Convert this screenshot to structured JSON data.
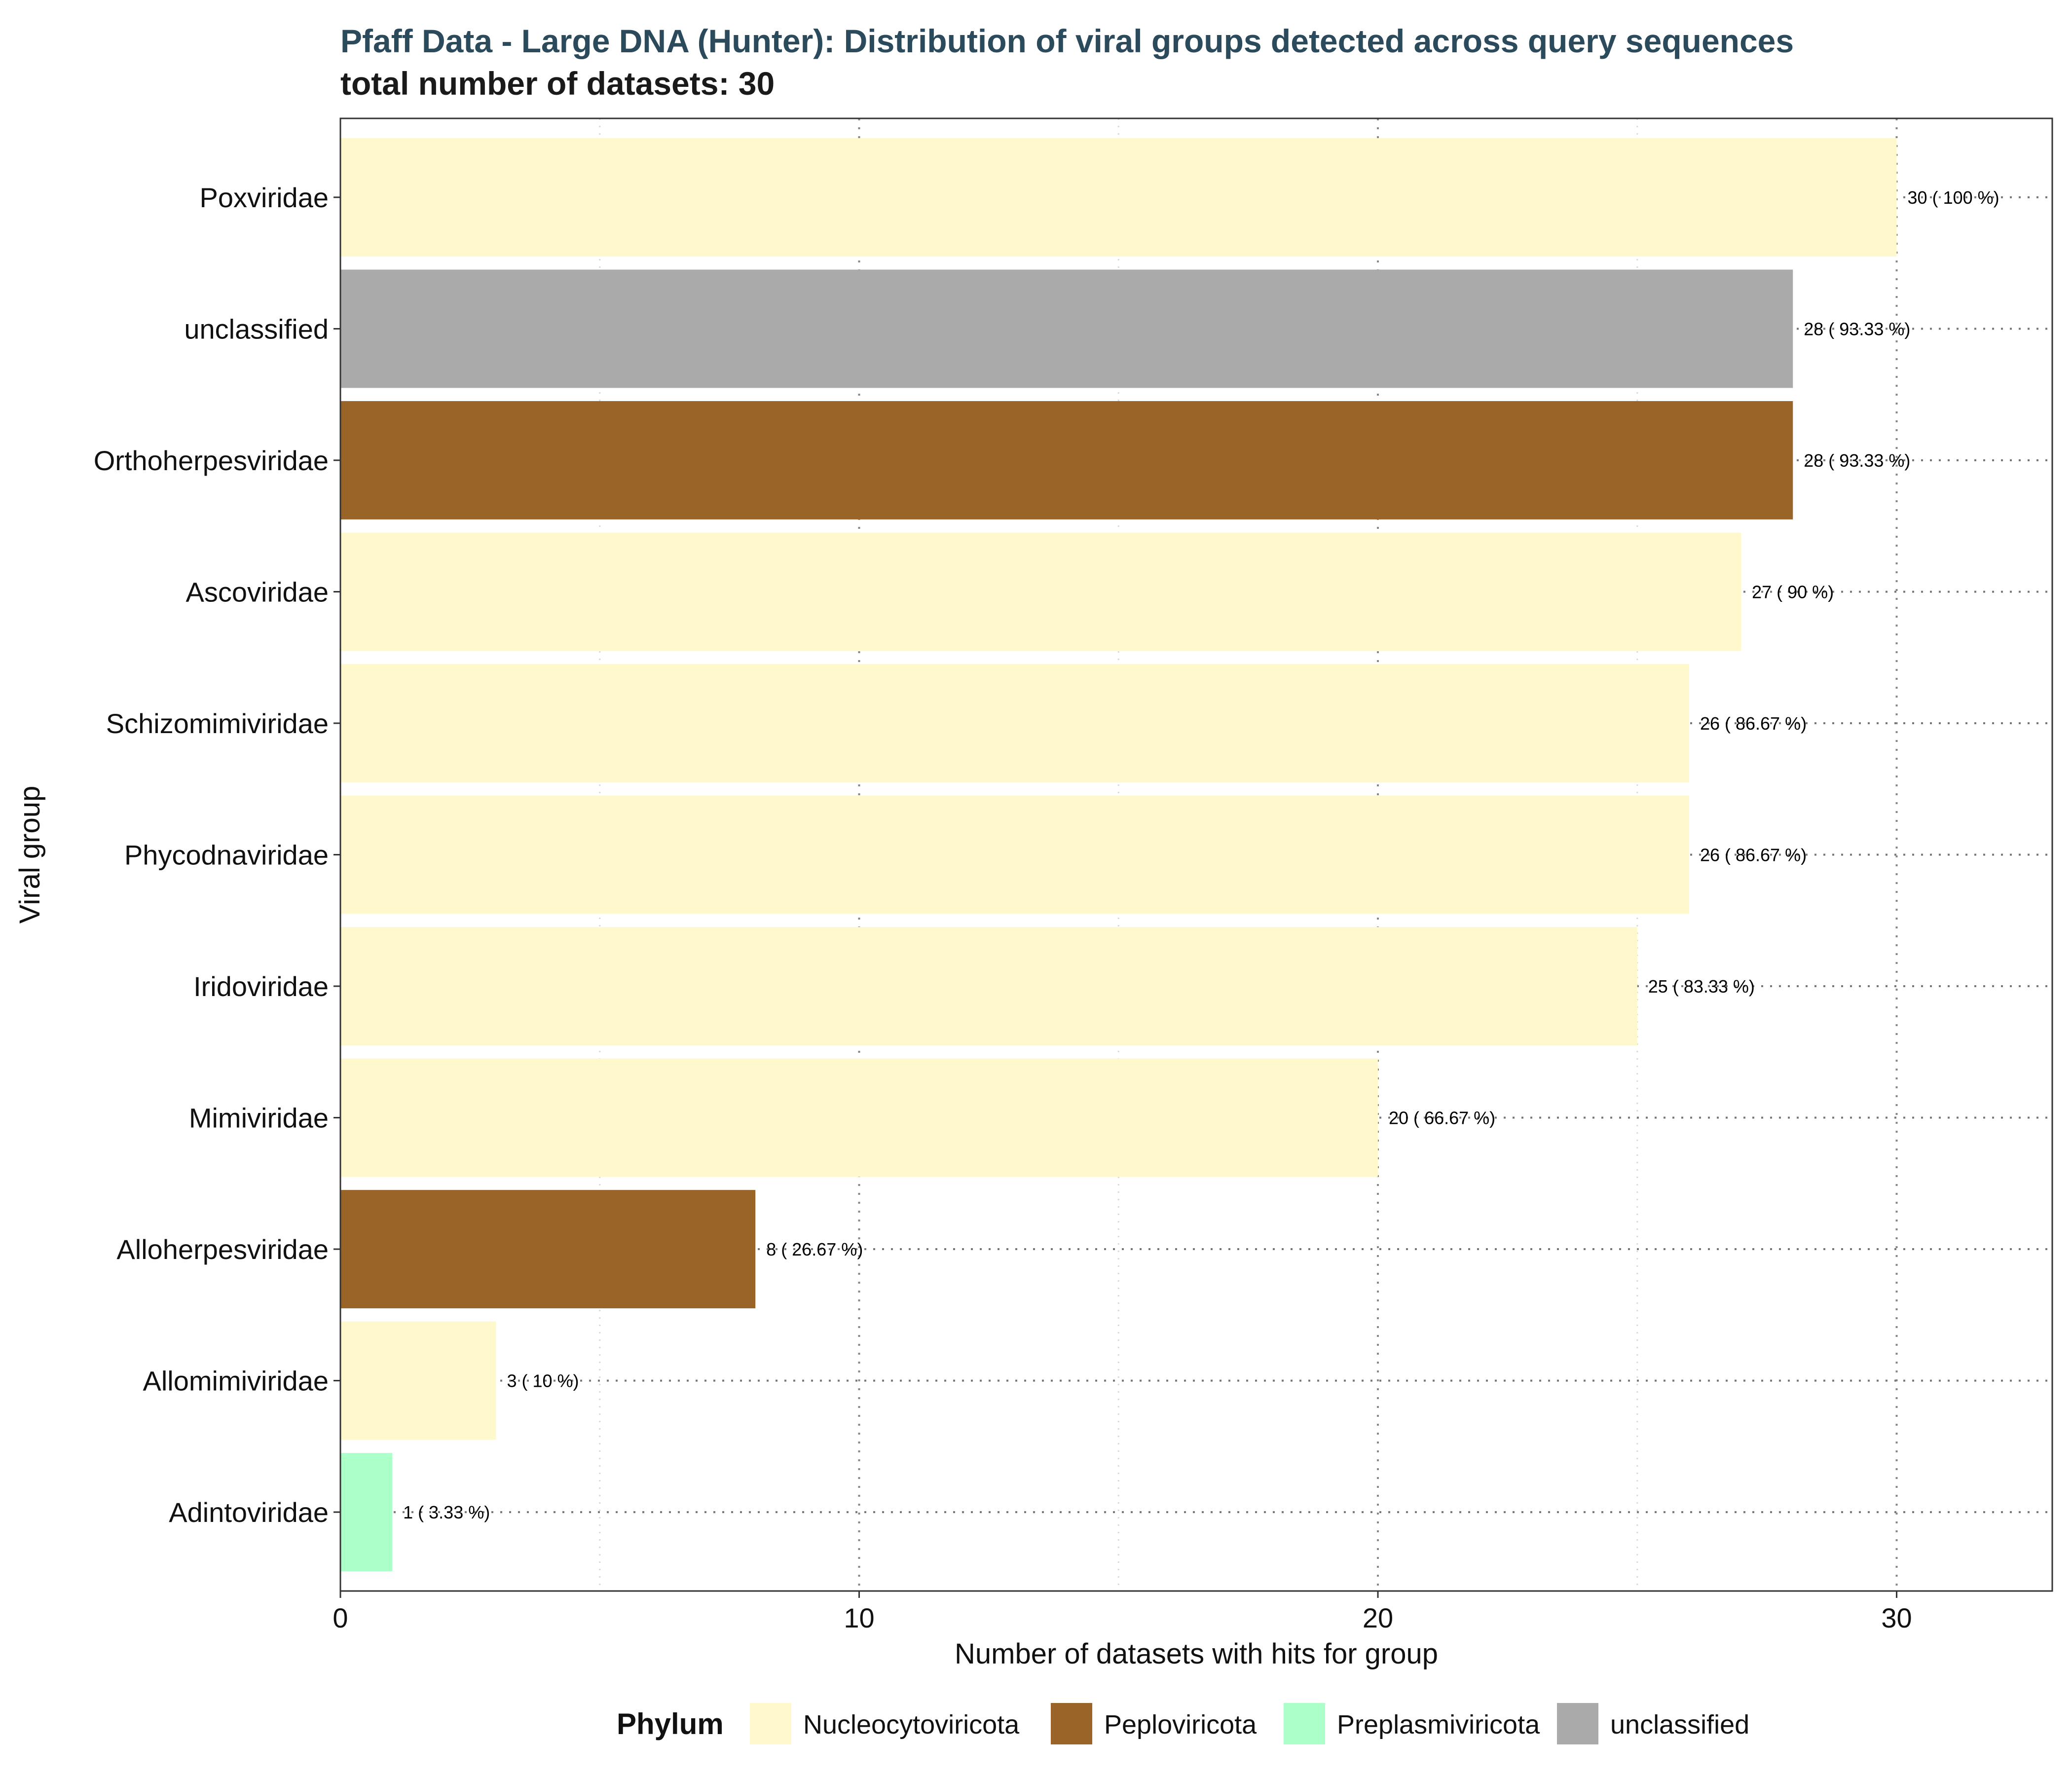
{
  "chart_data": {
    "type": "bar",
    "orientation": "horizontal",
    "title": "Pfaff Data - Large DNA (Hunter): Distribution of viral groups detected across query sequences",
    "subtitle": "total number of datasets: 30",
    "xlabel": "Number of datasets with hits for group",
    "ylabel": "Viral group",
    "xlim": [
      0,
      33
    ],
    "xticks": [
      "0",
      "10",
      "20",
      "30"
    ],
    "grid": true,
    "legend_position": "bottom",
    "legend_title": "Phylum",
    "legend": [
      {
        "name": "Nucleocytoviricota",
        "color": "#fff8cc"
      },
      {
        "name": "Peploviricota",
        "color": "#9a6428"
      },
      {
        "name": "Preplasmiviricota",
        "color": "#adffc9"
      },
      {
        "name": "unclassified",
        "color": "#aaaaaa"
      }
    ],
    "bars": [
      {
        "category": "Poxviridae",
        "value": 30,
        "label": "30 ( 100 %)",
        "phylum": "Nucleocytoviricota"
      },
      {
        "category": "unclassified",
        "value": 28,
        "label": "28 ( 93.33 %)",
        "phylum": "unclassified"
      },
      {
        "category": "Orthoherpesviridae",
        "value": 28,
        "label": "28 ( 93.33 %)",
        "phylum": "Peploviricota"
      },
      {
        "category": "Ascoviridae",
        "value": 27,
        "label": "27 ( 90 %)",
        "phylum": "Nucleocytoviricota"
      },
      {
        "category": "Schizomimiviridae",
        "value": 26,
        "label": "26 ( 86.67 %)",
        "phylum": "Nucleocytoviricota"
      },
      {
        "category": "Phycodnaviridae",
        "value": 26,
        "label": "26 ( 86.67 %)",
        "phylum": "Nucleocytoviricota"
      },
      {
        "category": "Iridoviridae",
        "value": 25,
        "label": "25 ( 83.33 %)",
        "phylum": "Nucleocytoviricota"
      },
      {
        "category": "Mimiviridae",
        "value": 20,
        "label": "20 ( 66.67 %)",
        "phylum": "Nucleocytoviricota"
      },
      {
        "category": "Alloherpesviridae",
        "value": 8,
        "label": "8 ( 26.67 %)",
        "phylum": "Peploviricota"
      },
      {
        "category": "Allomimiviridae",
        "value": 3,
        "label": "3 ( 10 %)",
        "phylum": "Nucleocytoviricota"
      },
      {
        "category": "Adintoviridae",
        "value": 1,
        "label": "1 ( 3.33 %)",
        "phylum": "Preplasmiviricota"
      }
    ]
  }
}
